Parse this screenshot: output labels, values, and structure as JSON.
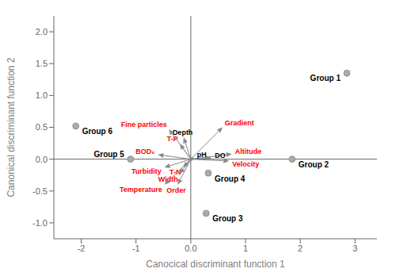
{
  "chart_data": {
    "type": "biplot",
    "x_label": "Canocical discriminant function 1",
    "y_label": "Canonical discriminant function 2",
    "xlim": [
      -2.5,
      3.4
    ],
    "ylim": [
      -1.25,
      2.25
    ],
    "xticks": [
      -2,
      -1,
      {
        "value": 0,
        "label": "0.0"
      },
      1,
      2,
      3
    ],
    "yticks": [
      {
        "value": -1,
        "label": "-1.0"
      },
      -0.5,
      {
        "value": 0,
        "label": "0.0"
      },
      0.5,
      {
        "value": 1,
        "label": "1.0"
      },
      1.5,
      {
        "value": 2,
        "label": "2.0"
      }
    ],
    "points": {
      "color": "#aaaaaa",
      "labels": [
        "Group 1",
        "Group 2",
        "Group 3",
        "Group 4",
        "Group 5",
        "Group 6"
      ],
      "x": [
        2.85,
        1.85,
        0.28,
        0.32,
        -1.1,
        -2.1
      ],
      "y": [
        1.35,
        0.0,
        -0.85,
        -0.22,
        0.0,
        0.52
      ]
    },
    "arrows": {
      "color": "#888888",
      "labels": [
        "Gradient",
        "Altitude",
        "Velocity",
        "DO",
        "pH",
        "BOD₅",
        "T-P",
        "Depth",
        "Fine particles",
        "Turbidity",
        "T-N",
        "Width",
        "Temperature",
        "Order"
      ],
      "x": [
        0.58,
        0.75,
        0.7,
        0.38,
        0.06,
        -0.6,
        -0.2,
        -0.13,
        -0.4,
        -0.48,
        -0.14,
        -0.2,
        -0.48,
        -0.24
      ],
      "y": [
        0.5,
        0.08,
        -0.03,
        0.02,
        0.02,
        0.07,
        0.24,
        0.34,
        0.47,
        -0.13,
        -0.13,
        -0.23,
        -0.4,
        -0.4
      ],
      "label_colors": [
        "red",
        "red",
        "red",
        "black",
        "black",
        "red",
        "red",
        "black",
        "red",
        "red",
        "red",
        "red",
        "red",
        "red"
      ]
    }
  }
}
